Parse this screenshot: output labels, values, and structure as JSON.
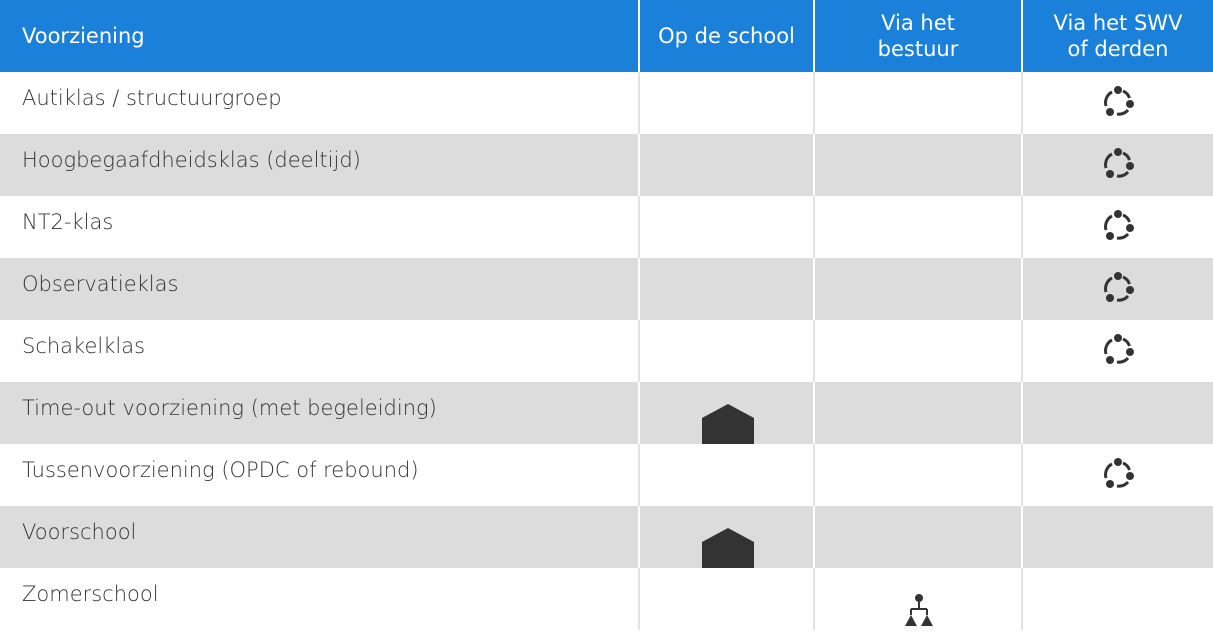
{
  "table": {
    "header": [
      "Voorziening",
      "Op de school",
      "Via het bestuur",
      "Via het SWV of derden"
    ],
    "rows": [
      "Autiklas / structuurgroep",
      "Hoogbegaafdheidsklas (deeltijd)",
      "NT2-klas",
      "Observatieklas",
      "Schakelklas",
      "Time-out voorziening (met begeleiding)",
      "Tussenvoorziening (OPDC of rebound)",
      "Voorschool",
      "Zomerschool"
    ]
  }
}
